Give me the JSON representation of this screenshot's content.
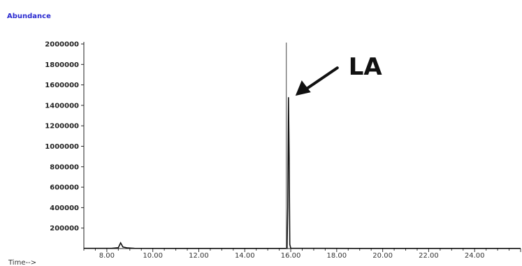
{
  "chart_data": {
    "type": "line",
    "title": "",
    "ylabel": "Abundance",
    "xlabel": "Time-->",
    "xlim": [
      7.0,
      26.0
    ],
    "ylim": [
      0,
      2000000
    ],
    "x_ticks": [
      "8.00",
      "10.00",
      "12.00",
      "14.00",
      "16.00",
      "18.00",
      "20.00",
      "22.00",
      "24.00"
    ],
    "y_ticks": [
      "200000",
      "400000",
      "600000",
      "800000",
      "1000000",
      "1200000",
      "1400000",
      "1600000",
      "1800000",
      "2000000"
    ],
    "series": [
      {
        "x": [
          7.0,
          8.2,
          8.5,
          8.6,
          8.7,
          8.9,
          9.2,
          12.0,
          15.84,
          15.87,
          15.9,
          15.93,
          15.96,
          16.0,
          19.0,
          26.0
        ],
        "y": [
          2000,
          2000,
          8000,
          55000,
          15000,
          6000,
          2000,
          1500,
          1500,
          400000,
          1480000,
          900000,
          40000,
          3000,
          1500,
          1500
        ]
      }
    ],
    "annotations": [
      {
        "text": "LA",
        "x": 15.9,
        "y": 1480000,
        "arrow": true
      }
    ],
    "grid": false,
    "legend": "none"
  }
}
